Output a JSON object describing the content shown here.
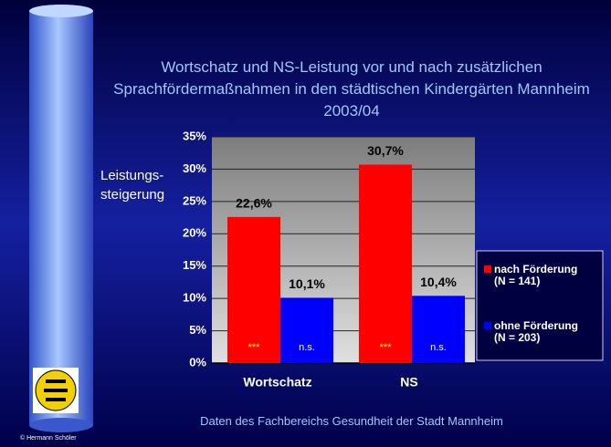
{
  "title": "Wortschatz und NS-Leistung vor und nach zusätzlichen\nSprachfördermaßnahmen in den städtischen Kindergärten Mannheim\n2003/04",
  "footer": "Daten des Fachbereichs Gesundheit der Stadt Mannheim",
  "copyright": "© Hermann Schöler",
  "chart_data": {
    "type": "bar",
    "y_label": "Leistungs-\nsteigerung",
    "categories": [
      "Wortschatz",
      "NS"
    ],
    "series": [
      {
        "name": "nach Förderung\n(N = 141)",
        "color": "#ff0000",
        "values": [
          22.6,
          30.7
        ],
        "value_labels": [
          "22,6%",
          "30,7%"
        ],
        "inner_labels": [
          "***",
          "***"
        ]
      },
      {
        "name": "ohne Förderung\n(N = 203)",
        "color": "#0000ff",
        "values": [
          10.1,
          10.4
        ],
        "value_labels": [
          "10,1%",
          "10,4%"
        ],
        "inner_labels": [
          "n.s.",
          "n.s."
        ]
      }
    ],
    "ylim": [
      0,
      35
    ],
    "yticks": [
      {
        "value": 0,
        "label": "0%"
      },
      {
        "value": 5,
        "label": "5%"
      },
      {
        "value": 10,
        "label": "10%"
      },
      {
        "value": 15,
        "label": "15%"
      },
      {
        "value": 20,
        "label": "20%"
      },
      {
        "value": 25,
        "label": "25%"
      },
      {
        "value": 30,
        "label": "30%"
      },
      {
        "value": 35,
        "label": "35%"
      }
    ],
    "grid": true,
    "legend": "right"
  }
}
